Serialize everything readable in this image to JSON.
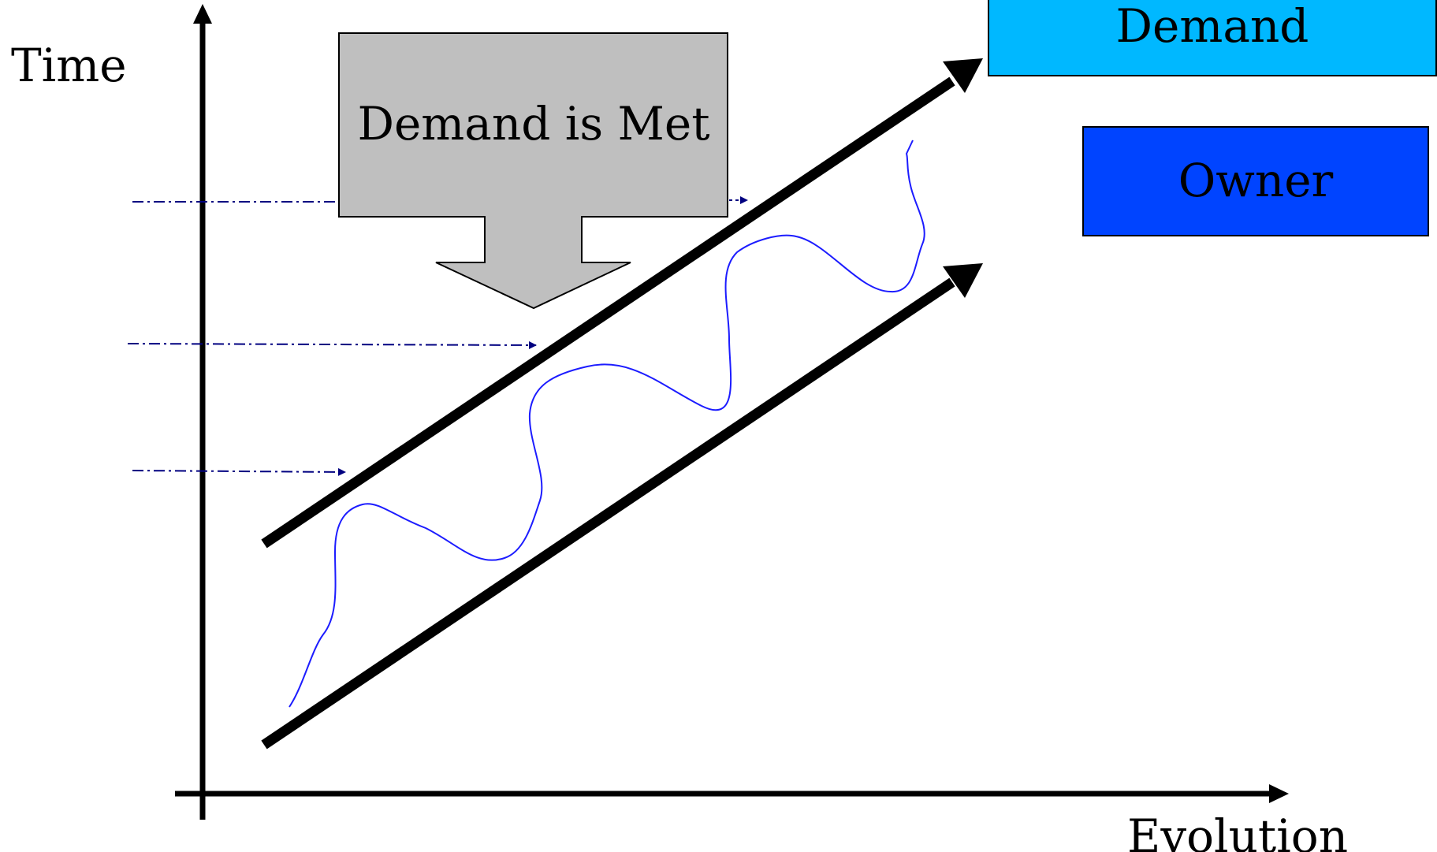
{
  "axes": {
    "y_label": "Time",
    "x_label": "Evolution"
  },
  "callout": {
    "text": "Demand is Met",
    "fill": "#bfbfbf"
  },
  "legend": {
    "items": [
      {
        "label": "Demand",
        "color": "#00b8ff"
      },
      {
        "label": "Owner",
        "color": "#0044ff"
      }
    ]
  },
  "colors": {
    "axis": "#000000",
    "bands": "#000000",
    "wave": "#1c1cff",
    "guides": "#000080"
  }
}
